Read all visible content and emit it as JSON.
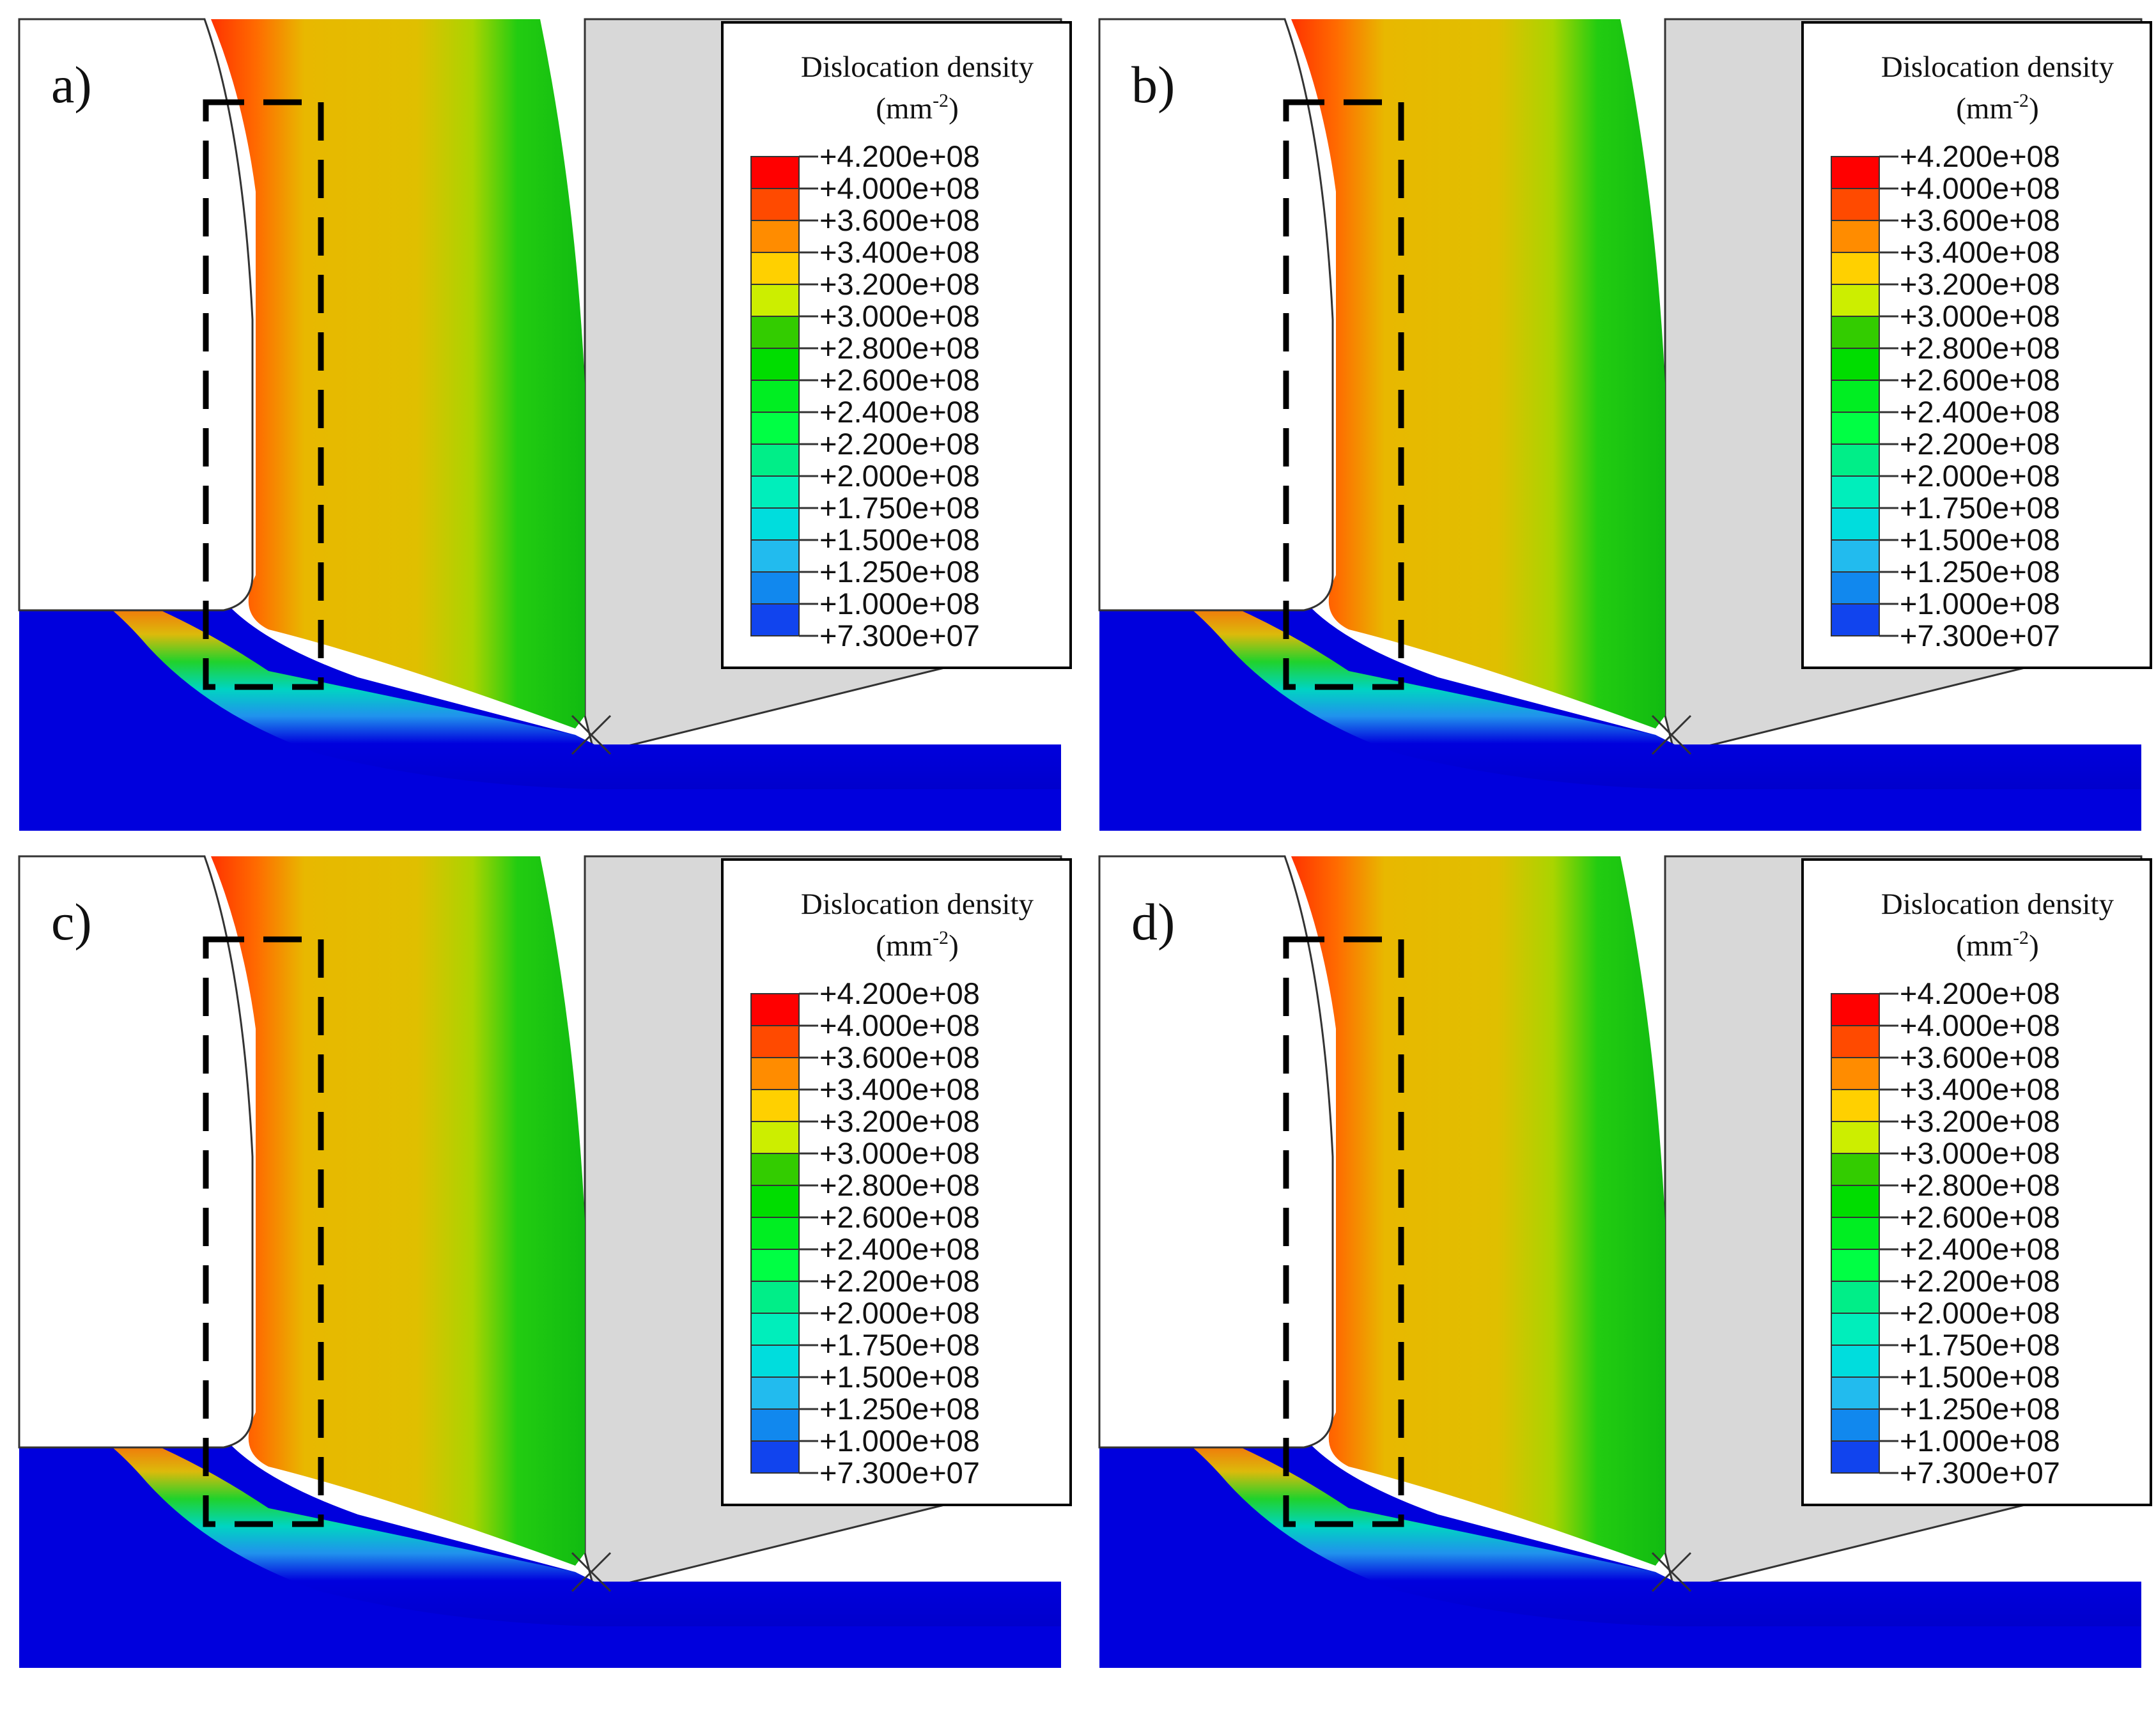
{
  "figure": {
    "description_labels": [
      "a)",
      "b)",
      "c)",
      "d)"
    ],
    "legend": {
      "title": "Dislocation density",
      "unit_base": "(mm",
      "unit_exponent": "-2",
      "unit_close": ")",
      "levels": [
        "+4.200e+08",
        "+4.000e+08",
        "+3.600e+08",
        "+3.400e+08",
        "+3.200e+08",
        "+3.000e+08",
        "+2.800e+08",
        "+2.600e+08",
        "+2.400e+08",
        "+2.200e+08",
        "+2.000e+08",
        "+1.750e+08",
        "+1.500e+08",
        "+1.250e+08",
        "+1.000e+08",
        "+7.300e+07"
      ],
      "colors": [
        "#ff0000",
        "#ff4a00",
        "#ff8c00",
        "#ffd000",
        "#ccee00",
        "#33cc00",
        "#00dd00",
        "#00ee22",
        "#00ff44",
        "#00ee88",
        "#00eebb",
        "#00dddd",
        "#22bbee",
        "#1188ee",
        "#1144ee",
        "#0000dd"
      ]
    }
  }
}
